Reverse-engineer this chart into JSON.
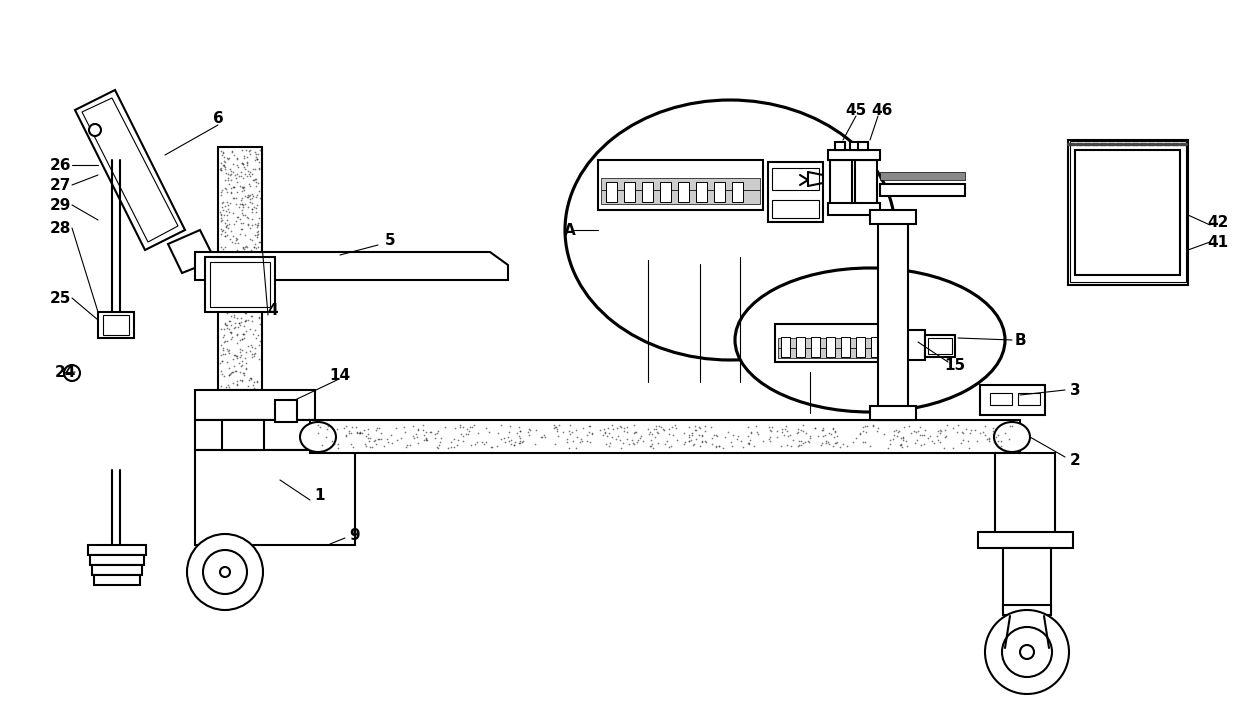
{
  "bg_color": "#ffffff",
  "lc": "#000000",
  "lw": 1.5,
  "lw_thin": 0.8
}
